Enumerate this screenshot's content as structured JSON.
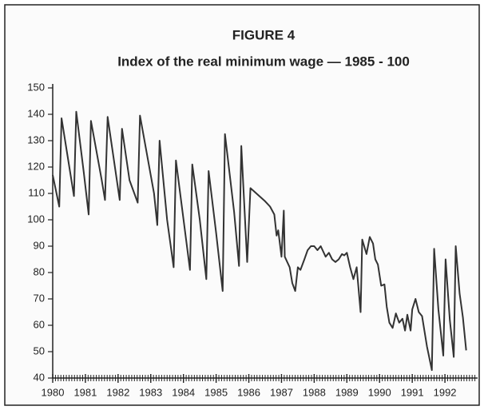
{
  "chart_data": {
    "type": "line",
    "title": "FIGURE 4",
    "subtitle": "Index of the real minimum wage — 1985 - 100",
    "x": [
      1980.0,
      1980.2,
      1980.27,
      1980.65,
      1980.72,
      1980.95,
      1981.1,
      1981.17,
      1981.5,
      1981.6,
      1981.68,
      1982.05,
      1982.12,
      1982.35,
      1982.6,
      1982.67,
      1983.1,
      1983.2,
      1983.27,
      1983.5,
      1983.7,
      1983.77,
      1984.2,
      1984.27,
      1984.5,
      1984.7,
      1984.77,
      1985.0,
      1985.2,
      1985.27,
      1985.55,
      1985.7,
      1985.77,
      1985.95,
      1986.05,
      1986.5,
      1986.65,
      1986.78,
      1986.85,
      1986.9,
      1987.0,
      1987.07,
      1987.1,
      1987.25,
      1987.33,
      1987.42,
      1987.5,
      1987.58,
      1987.7,
      1987.8,
      1987.9,
      1988.0,
      1988.1,
      1988.2,
      1988.35,
      1988.45,
      1988.55,
      1988.65,
      1988.75,
      1988.85,
      1988.92,
      1989.0,
      1989.1,
      1989.2,
      1989.3,
      1989.42,
      1989.47,
      1989.6,
      1989.7,
      1989.8,
      1989.87,
      1989.95,
      1990.05,
      1990.15,
      1990.22,
      1990.3,
      1990.4,
      1990.5,
      1990.6,
      1990.7,
      1990.78,
      1990.85,
      1990.95,
      1991.0,
      1991.1,
      1991.2,
      1991.3,
      1991.45,
      1991.6,
      1991.67,
      1991.8,
      1991.95,
      1992.02,
      1992.15,
      1992.27,
      1992.33,
      1992.45,
      1992.55,
      1992.65
    ],
    "series": [
      {
        "name": "Index",
        "color": "#333333",
        "values": [
          117,
          105,
          138.5,
          109,
          141,
          118,
          102,
          137.5,
          115,
          107.5,
          139,
          107.5,
          134.5,
          115,
          106.5,
          139.5,
          110,
          98,
          130,
          100,
          82,
          122.5,
          81,
          121,
          100,
          77.5,
          118.5,
          95,
          73,
          132.5,
          103,
          82.5,
          128,
          84,
          112,
          107,
          105,
          102,
          94,
          96,
          86,
          103.5,
          86,
          82,
          76,
          73,
          82,
          81,
          85,
          88.5,
          90,
          90,
          88.5,
          90,
          86,
          87.5,
          85,
          84,
          85,
          87,
          86.5,
          87.5,
          82,
          77.5,
          82,
          65,
          92.5,
          87,
          93.5,
          91,
          85,
          83,
          75,
          75.5,
          67,
          61,
          59,
          64.5,
          61,
          62.5,
          58,
          64,
          58,
          66,
          70,
          65,
          63.5,
          52,
          43,
          89,
          66,
          48.5,
          85,
          62,
          48,
          90,
          72,
          63,
          50.5
        ]
      }
    ],
    "xlim": [
      1980,
      1993
    ],
    "xticks": [
      1980,
      1981,
      1982,
      1983,
      1984,
      1985,
      1986,
      1987,
      1988,
      1989,
      1990,
      1991,
      1992
    ],
    "ylim": [
      40,
      150
    ],
    "yticks": [
      40,
      50,
      60,
      70,
      80,
      90,
      100,
      110,
      120,
      130,
      140,
      150
    ]
  }
}
